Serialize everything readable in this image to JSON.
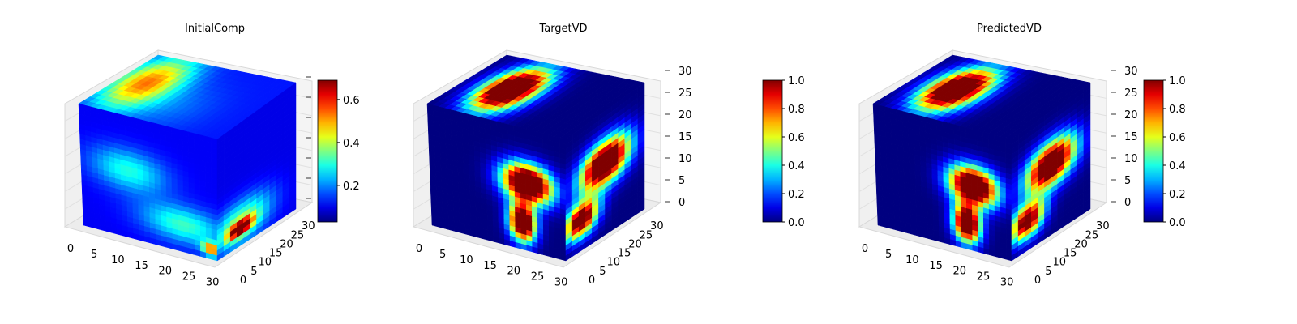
{
  "chart_data": [
    {
      "type": "heatmap",
      "title": "InitialComp",
      "grid": true,
      "x_ticks": [
        "0",
        "5",
        "10",
        "15",
        "20",
        "25",
        "30"
      ],
      "y_ticks": [
        "0",
        "5",
        "10",
        "15",
        "20",
        "25",
        "30"
      ],
      "z_ticks": [],
      "colorbar": {
        "colormap": "jet",
        "range": [
          0.03,
          0.69
        ],
        "ticks": [
          "0.2",
          "0.4",
          "0.6"
        ]
      },
      "faces": {
        "top": {
          "nx": 24,
          "ny": 14,
          "blobs": [
            {
              "cx": 0.18,
              "cy": 0.55,
              "rx": 0.3,
              "ry": 0.7,
              "v": 0.42
            },
            {
              "cx": 0.5,
              "cy": 0.3,
              "rx": 0.4,
              "ry": 0.6,
              "v": 0.06
            }
          ],
          "base": 0.1
        },
        "front": {
          "nx": 24,
          "ny": 24,
          "blobs": [
            {
              "cx": 0.35,
              "cy": 0.45,
              "rx": 0.4,
              "ry": 0.25,
              "v": 0.2
            },
            {
              "cx": 0.75,
              "cy": 0.78,
              "rx": 0.45,
              "ry": 0.22,
              "v": 0.22
            },
            {
              "cx": 0.96,
              "cy": 0.92,
              "rx": 0.1,
              "ry": 0.08,
              "v": 0.45
            }
          ],
          "base": 0.08
        },
        "side": {
          "nx": 12,
          "ny": 24,
          "blobs": [
            {
              "cx": 0.3,
              "cy": 0.82,
              "rx": 0.55,
              "ry": 0.25,
              "v": 0.3
            },
            {
              "cx": 0.3,
              "cy": 0.86,
              "rx": 0.22,
              "ry": 0.08,
              "v": 0.62
            }
          ],
          "base": 0.07
        }
      }
    },
    {
      "type": "heatmap",
      "title": "TargetVD",
      "grid": true,
      "x_ticks": [
        "0",
        "5",
        "10",
        "15",
        "20",
        "25",
        "30"
      ],
      "y_ticks": [
        "0",
        "5",
        "10",
        "15",
        "20",
        "25",
        "30"
      ],
      "z_ticks": [
        "0",
        "5",
        "10",
        "15",
        "20",
        "25",
        "30"
      ],
      "colorbar": {
        "colormap": "jet",
        "range": [
          0.0,
          1.0
        ],
        "ticks": [
          "0.0",
          "0.2",
          "0.4",
          "0.6",
          "0.8",
          "1.0"
        ]
      },
      "faces": {
        "top": {
          "nx": 24,
          "ny": 14,
          "blobs": [
            {
              "cx": 0.32,
              "cy": 0.5,
              "rx": 0.24,
              "ry": 0.55,
              "v": 1.5
            }
          ],
          "base": 0.0
        },
        "front": {
          "nx": 24,
          "ny": 24,
          "blobs": [
            {
              "cx": 0.72,
              "cy": 0.45,
              "rx": 0.26,
              "ry": 0.22,
              "v": 1.5
            },
            {
              "cx": 0.68,
              "cy": 0.78,
              "rx": 0.14,
              "ry": 0.22,
              "v": 1.4
            }
          ],
          "base": 0.0
        },
        "side": {
          "nx": 12,
          "ny": 24,
          "blobs": [
            {
              "cx": 0.5,
              "cy": 0.42,
              "rx": 0.45,
              "ry": 0.25,
              "v": 1.4
            },
            {
              "cx": 0.2,
              "cy": 0.75,
              "rx": 0.3,
              "ry": 0.2,
              "v": 1.2
            }
          ],
          "base": 0.0
        }
      }
    },
    {
      "type": "heatmap",
      "title": "PredictedVD",
      "grid": true,
      "x_ticks": [
        "0",
        "5",
        "10",
        "15",
        "20",
        "25",
        "30"
      ],
      "y_ticks": [
        "0",
        "5",
        "10",
        "15",
        "20",
        "25",
        "30"
      ],
      "z_ticks": [
        "0",
        "5",
        "10",
        "15",
        "20",
        "25",
        "30"
      ],
      "colorbar": {
        "colormap": "jet",
        "range": [
          0.0,
          1.0
        ],
        "ticks": [
          "0.0",
          "0.2",
          "0.4",
          "0.6",
          "0.8",
          "1.0"
        ]
      },
      "faces": {
        "top": {
          "nx": 24,
          "ny": 14,
          "blobs": [
            {
              "cx": 0.32,
              "cy": 0.5,
              "rx": 0.25,
              "ry": 0.55,
              "v": 1.45
            }
          ],
          "base": 0.0
        },
        "front": {
          "nx": 24,
          "ny": 24,
          "blobs": [
            {
              "cx": 0.72,
              "cy": 0.47,
              "rx": 0.25,
              "ry": 0.22,
              "v": 1.45
            },
            {
              "cx": 0.67,
              "cy": 0.79,
              "rx": 0.14,
              "ry": 0.22,
              "v": 1.4
            }
          ],
          "base": 0.0
        },
        "side": {
          "nx": 12,
          "ny": 24,
          "blobs": [
            {
              "cx": 0.5,
              "cy": 0.43,
              "rx": 0.45,
              "ry": 0.25,
              "v": 1.35
            },
            {
              "cx": 0.2,
              "cy": 0.76,
              "rx": 0.3,
              "ry": 0.2,
              "v": 1.15
            }
          ],
          "base": 0.0
        }
      }
    }
  ]
}
